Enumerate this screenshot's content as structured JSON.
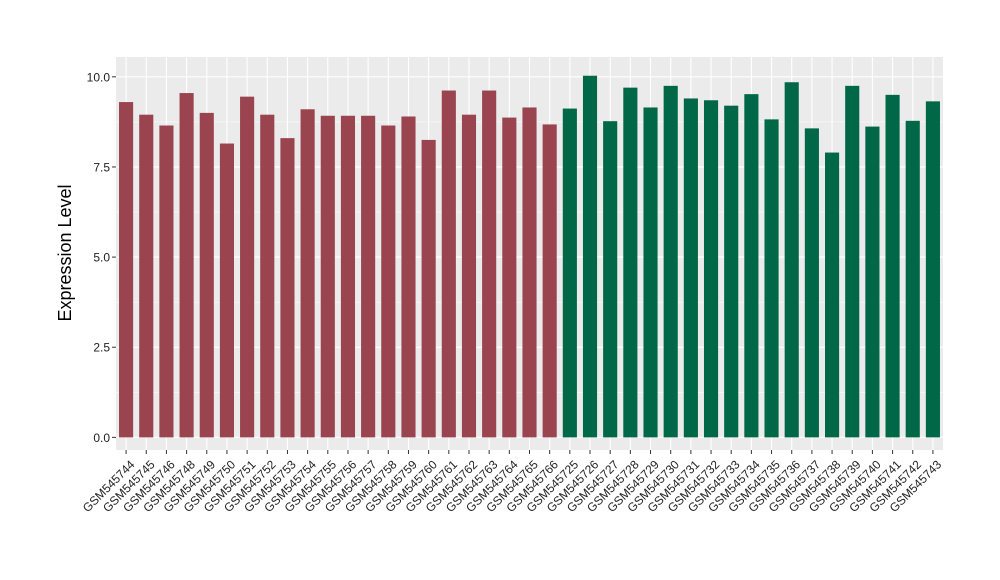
{
  "chart_data": {
    "type": "bar",
    "title": "",
    "xlabel": "",
    "ylabel": "Expression Level",
    "ylim": [
      -0.35,
      10.55
    ],
    "yticks": [
      0.0,
      2.5,
      5.0,
      7.5,
      10.0
    ],
    "ytick_labels": [
      "0.0",
      "2.5",
      "5.0",
      "7.5",
      "10.0"
    ],
    "grid": true,
    "legend": "none",
    "categories": [
      "GSM545744",
      "GSM545745",
      "GSM545746",
      "GSM545748",
      "GSM545749",
      "GSM545750",
      "GSM545751",
      "GSM545752",
      "GSM545753",
      "GSM545754",
      "GSM545755",
      "GSM545756",
      "GSM545757",
      "GSM545758",
      "GSM545759",
      "GSM545760",
      "GSM545761",
      "GSM545762",
      "GSM545763",
      "GSM545764",
      "GSM545765",
      "GSM545766",
      "GSM545725",
      "GSM545726",
      "GSM545727",
      "GSM545728",
      "GSM545729",
      "GSM545730",
      "GSM545731",
      "GSM545732",
      "GSM545733",
      "GSM545734",
      "GSM545735",
      "GSM545736",
      "GSM545737",
      "GSM545738",
      "GSM545739",
      "GSM545740",
      "GSM545741",
      "GSM545742",
      "GSM545743"
    ],
    "values": [
      9.3,
      8.95,
      8.65,
      9.55,
      9.0,
      8.15,
      9.45,
      8.95,
      8.3,
      9.1,
      8.92,
      8.92,
      8.92,
      8.65,
      8.9,
      8.25,
      9.62,
      8.95,
      9.62,
      8.87,
      9.15,
      8.68,
      9.12,
      10.03,
      8.77,
      9.7,
      9.15,
      9.75,
      9.4,
      9.35,
      9.2,
      9.52,
      8.82,
      9.85,
      8.57,
      7.9,
      9.75,
      8.62,
      9.5,
      8.78,
      9.32
    ],
    "groups": [
      {
        "count": 22,
        "color": "#9a4450"
      },
      {
        "count": 19,
        "color": "#006846"
      }
    ]
  }
}
